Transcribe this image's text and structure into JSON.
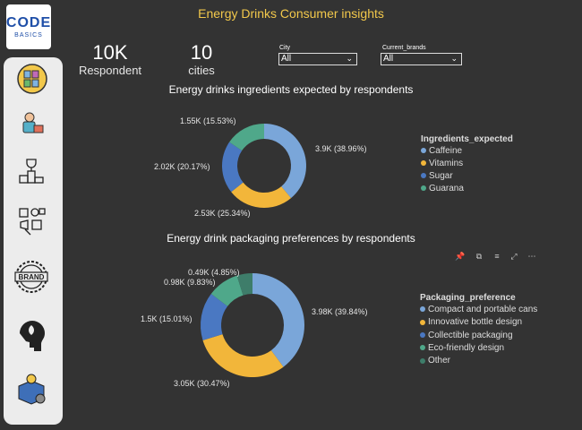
{
  "logo": {
    "main": "CODE",
    "sub": "BASICS"
  },
  "title": "Energy Drinks Consumer insights",
  "kpis": [
    {
      "value": "10K",
      "label": "Respondent"
    },
    {
      "value": "10",
      "label": "cities"
    }
  ],
  "filters": {
    "city": {
      "label": "City",
      "value": "All"
    },
    "brands": {
      "label": "Current_brands",
      "value": "All"
    }
  },
  "sidebar": {
    "icons": [
      "bottles-icon",
      "shopper-icon",
      "podium-icon",
      "marketing-icon",
      "brand-icon",
      "head-idea-icon",
      "box-gear-icon"
    ]
  },
  "chart_data": [
    {
      "type": "pie",
      "title": "Energy drinks ingredients expected by respondents",
      "legend_title": "Ingredients_expected",
      "categories": [
        "Caffeine",
        "Vitamins",
        "Sugar",
        "Guarana"
      ],
      "values": [
        38.96,
        25.34,
        20.17,
        15.53
      ],
      "labels": [
        "3.9K (38.96%)",
        "2.53K (25.34%)",
        "2.02K (20.17%)",
        "1.55K (15.53%)"
      ],
      "colors": [
        "#7aa6d9",
        "#f2b63a",
        "#4a78c2",
        "#4fa88a"
      ]
    },
    {
      "type": "pie",
      "title": "Energy drink packaging preferences by respondents",
      "legend_title": "Packaging_preference",
      "categories": [
        "Compact and portable cans",
        "Innovative bottle design",
        "Collectible packaging",
        "Eco-friendly design",
        "Other"
      ],
      "values": [
        39.84,
        30.47,
        15.01,
        9.83,
        4.85
      ],
      "labels": [
        "3.98K (39.84%)",
        "3.05K (30.47%)",
        "1.5K (15.01%)",
        "0.98K (9.83%)",
        "0.49K (4.85%)"
      ],
      "colors": [
        "#7aa6d9",
        "#f2b63a",
        "#4a78c2",
        "#4fa88a",
        "#3e7d6a"
      ]
    }
  ],
  "toolbar": {
    "pin": "📌",
    "copy": "⧉",
    "filter": "≡",
    "focus": "⤢",
    "more": "⋯"
  }
}
